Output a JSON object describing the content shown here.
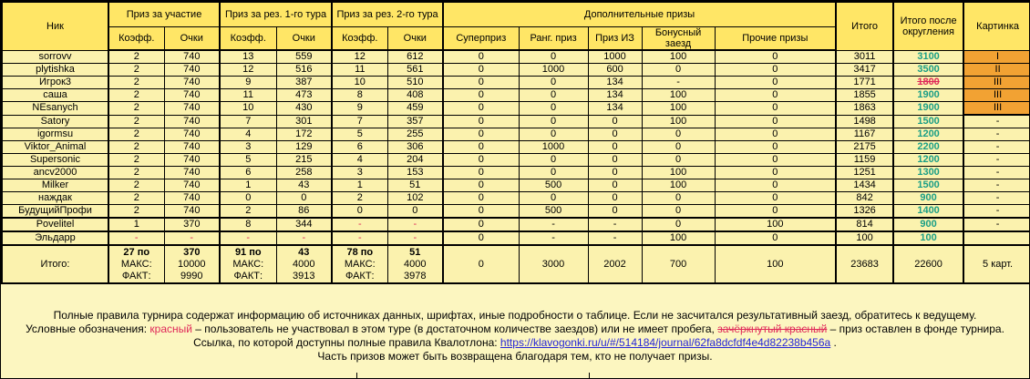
{
  "colors": {
    "header_bg": "#ffe666",
    "cell_bg": "#fbf2ae",
    "footer_bg": "#fcf6c0",
    "highlight_orange": "#f2a233",
    "rounded_teal": "#1b9e86",
    "red": "#e02a5a",
    "link_blue": "#2626d8"
  },
  "table": {
    "header": {
      "nick": "Ник",
      "groups": [
        {
          "label": "Приз за участие"
        },
        {
          "label": "Приз за рез. 1-го тура"
        },
        {
          "label": "Приз за рез. 2-го тура"
        },
        {
          "label": "Дополнительные призы"
        }
      ],
      "cols": [
        "Коэфф.",
        "Очки",
        "Коэфф.",
        "Очки",
        "Коэфф.",
        "Очки",
        "Суперприз",
        "Ранг. приз",
        "Приз ИЗ",
        "Бонусный заезд",
        "Прочие призы"
      ],
      "total": "Итого",
      "total_rounded": "Итого после округления",
      "picture": "Картинка"
    },
    "rows": [
      {
        "nick": "sorrovv",
        "values": [
          "2",
          "740",
          "13",
          "559",
          "12",
          "612",
          "0",
          "0",
          "1000",
          "100",
          "0",
          "3011"
        ],
        "rounded": "3100",
        "picture": "I",
        "picture_highlight": true
      },
      {
        "nick": "plytishka",
        "values": [
          "2",
          "740",
          "12",
          "516",
          "11",
          "561",
          "0",
          "1000",
          "600",
          "0",
          "0",
          "3417"
        ],
        "rounded": "3500",
        "picture": "II",
        "picture_highlight": true
      },
      {
        "nick": "Игрок3",
        "values": [
          "2",
          "740",
          "9",
          "387",
          "10",
          "510",
          "0",
          "0",
          "134",
          "-",
          "0",
          "1771"
        ],
        "rounded": "1800",
        "rounded_strike": true,
        "picture": "III",
        "picture_highlight": true
      },
      {
        "nick": "саша",
        "values": [
          "2",
          "740",
          "11",
          "473",
          "8",
          "408",
          "0",
          "0",
          "134",
          "100",
          "0",
          "1855"
        ],
        "rounded": "1900",
        "picture": "III",
        "picture_highlight": true
      },
      {
        "nick": "NEsanych",
        "values": [
          "2",
          "740",
          "10",
          "430",
          "9",
          "459",
          "0",
          "0",
          "134",
          "100",
          "0",
          "1863"
        ],
        "rounded": "1900",
        "picture": "III",
        "picture_highlight": true
      },
      {
        "nick": "Satory",
        "values": [
          "2",
          "740",
          "7",
          "301",
          "7",
          "357",
          "0",
          "0",
          "0",
          "100",
          "0",
          "1498"
        ],
        "rounded": "1500",
        "picture": "-"
      },
      {
        "nick": "igormsu",
        "values": [
          "2",
          "740",
          "4",
          "172",
          "5",
          "255",
          "0",
          "0",
          "0",
          "0",
          "0",
          "1167"
        ],
        "rounded": "1200",
        "picture": "-"
      },
      {
        "nick": "Viktor_Animal",
        "values": [
          "2",
          "740",
          "3",
          "129",
          "6",
          "306",
          "0",
          "1000",
          "0",
          "0",
          "0",
          "2175"
        ],
        "rounded": "2200",
        "picture": "-"
      },
      {
        "nick": "Supersonic",
        "values": [
          "2",
          "740",
          "5",
          "215",
          "4",
          "204",
          "0",
          "0",
          "0",
          "0",
          "0",
          "1159"
        ],
        "rounded": "1200",
        "picture": "-"
      },
      {
        "nick": "ancv2000",
        "values": [
          "2",
          "740",
          "6",
          "258",
          "3",
          "153",
          "0",
          "0",
          "0",
          "100",
          "0",
          "1251"
        ],
        "rounded": "1300",
        "picture": "-"
      },
      {
        "nick": "Milker",
        "values": [
          "2",
          "740",
          "1",
          "43",
          "1",
          "51",
          "0",
          "500",
          "0",
          "100",
          "0",
          "1434"
        ],
        "rounded": "1500",
        "picture": "-"
      },
      {
        "nick": "наждак",
        "values": [
          "2",
          "740",
          "0",
          "0",
          "2",
          "102",
          "0",
          "0",
          "0",
          "0",
          "0",
          "842"
        ],
        "rounded": "900",
        "picture": "-"
      },
      {
        "nick": "БудущийПрофи",
        "values": [
          "2",
          "740",
          "2",
          "86",
          "0",
          "0",
          "0",
          "500",
          "0",
          "0",
          "0",
          "1326"
        ],
        "rounded": "1400",
        "picture": "-"
      },
      {
        "nick": "Povelitel",
        "values": [
          "1",
          "370",
          "8",
          "344",
          "-",
          "-",
          "0",
          "-",
          "-",
          "0",
          "100",
          "814"
        ],
        "red": [
          4,
          5
        ],
        "rounded": "900",
        "picture": "-",
        "sep": true
      },
      {
        "nick": "Эльдарр",
        "values": [
          "-",
          "-",
          "-",
          "-",
          "-",
          "-",
          "0",
          "-",
          "-",
          "100",
          "0",
          "100"
        ],
        "red": [
          0,
          1,
          2,
          3,
          4,
          5
        ],
        "rounded": "100",
        "picture": "",
        "sep": true
      }
    ],
    "totals": {
      "label": "Итого:",
      "groups": [
        {
          "k": [
            "27 по",
            "МАКС:",
            "ФАКТ:"
          ],
          "v": [
            "370",
            "10000",
            "9990"
          ]
        },
        {
          "k": [
            "91 по",
            "МАКС:",
            "ФАКТ:"
          ],
          "v": [
            "43",
            "4000",
            "3913"
          ]
        },
        {
          "k": [
            "78 по",
            "МАКС:",
            "ФАКТ:"
          ],
          "v": [
            "51",
            "4000",
            "3978"
          ]
        }
      ],
      "extras": [
        "0",
        "3000",
        "2002",
        "700",
        "100"
      ],
      "total": "23683",
      "rounded": "22600",
      "picture": "5 карт."
    }
  },
  "footer": {
    "line1": "Полные правила турнира содержат информацию об источниках данных, шрифтах, иные подробности о таблице. Если не засчитался результативный заезд, обратитесь к ведущему.",
    "line2_pre": "Условные обозначения: ",
    "line2_red": "красный",
    "line2_mid": " – пользователь не участвовал в этом туре (в достаточном количестве заездов) или не имеет пробега, ",
    "line2_strike": "зачёркнутый красный",
    "line2_post": " – приз оставлен в фонде турнира.",
    "line3_pre": "Ссылка, по которой доступны полные правила Квалотлона: ",
    "line3_link": "https://klavogonki.ru/u/#/514184/journal/62fa8dcfdf4e4d82238b456a",
    "line3_post": " .",
    "line4": "Часть призов может быть возвращена благодаря тем, кто не получает призы."
  }
}
